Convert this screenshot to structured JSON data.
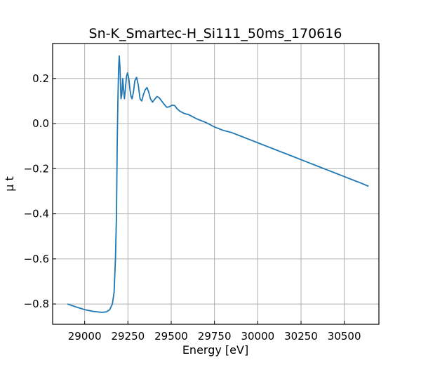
{
  "chart_data": {
    "type": "line",
    "title": "Sn-K_Smartec-H_Si111_50ms_170616",
    "xlabel": "Energy [eV]",
    "ylabel": "μ t",
    "xlim": [
      28815,
      30700
    ],
    "ylim": [
      -0.89,
      0.355
    ],
    "xticks": [
      29000,
      29250,
      29500,
      29750,
      30000,
      30250,
      30500
    ],
    "xtick_labels": [
      "29000",
      "29250",
      "29500",
      "29750",
      "30000",
      "30250",
      "30500"
    ],
    "yticks": [
      -0.8,
      -0.6,
      -0.4,
      -0.2,
      0.0,
      0.2
    ],
    "ytick_labels": [
      "−0.8",
      "−0.6",
      "−0.4",
      "−0.2",
      "0.0",
      "0.2"
    ],
    "grid": true,
    "series": [
      {
        "color": "#1f77b4",
        "x": [
          28900,
          28950,
          29000,
          29050,
          29100,
          29125,
          29145,
          29160,
          29170,
          29178,
          29184,
          29188,
          29192,
          29196,
          29200,
          29204,
          29210,
          29215,
          29220,
          29225,
          29230,
          29236,
          29242,
          29248,
          29255,
          29262,
          29268,
          29274,
          29282,
          29290,
          29300,
          29310,
          29320,
          29330,
          29340,
          29350,
          29360,
          29370,
          29380,
          29392,
          29405,
          29418,
          29430,
          29445,
          29460,
          29475,
          29490,
          29505,
          29520,
          29535,
          29550,
          29575,
          29600,
          29625,
          29650,
          29700,
          29750,
          29800,
          29850,
          29900,
          29950,
          30000,
          30050,
          30100,
          30150,
          30200,
          30250,
          30300,
          30350,
          30400,
          30450,
          30500,
          30550,
          30600,
          30640
        ],
        "y": [
          -0.8,
          -0.813,
          -0.825,
          -0.833,
          -0.837,
          -0.835,
          -0.825,
          -0.8,
          -0.75,
          -0.6,
          -0.4,
          -0.1,
          0.1,
          0.24,
          0.3,
          0.25,
          0.11,
          0.13,
          0.2,
          0.15,
          0.11,
          0.16,
          0.21,
          0.225,
          0.2,
          0.15,
          0.12,
          0.11,
          0.14,
          0.19,
          0.205,
          0.17,
          0.11,
          0.1,
          0.13,
          0.15,
          0.16,
          0.14,
          0.11,
          0.095,
          0.108,
          0.12,
          0.115,
          0.1,
          0.085,
          0.072,
          0.075,
          0.082,
          0.08,
          0.065,
          0.055,
          0.045,
          0.04,
          0.03,
          0.02,
          0.005,
          -0.015,
          -0.03,
          -0.04,
          -0.055,
          -0.07,
          -0.085,
          -0.1,
          -0.115,
          -0.13,
          -0.145,
          -0.16,
          -0.175,
          -0.19,
          -0.205,
          -0.22,
          -0.235,
          -0.25,
          -0.265,
          -0.278
        ]
      }
    ]
  }
}
